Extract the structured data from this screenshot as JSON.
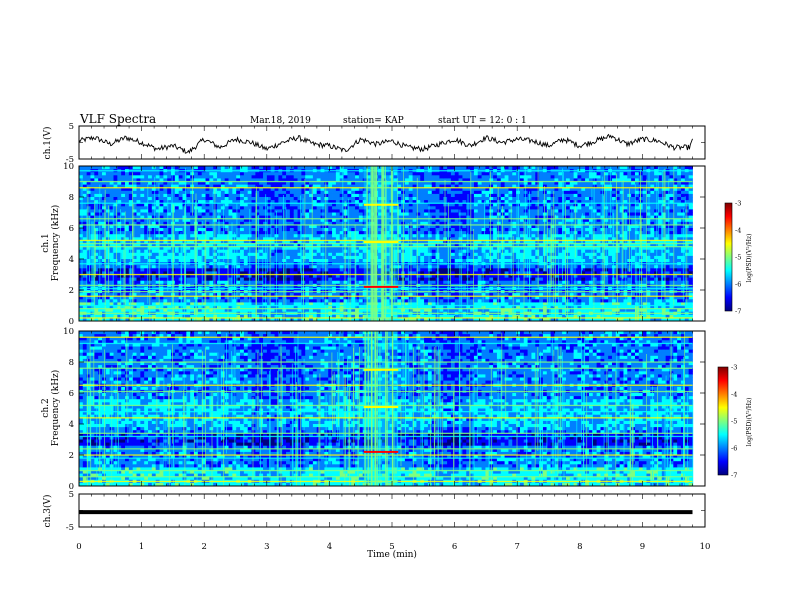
{
  "header": {
    "title": "VLF Spectra",
    "date": "Mar.18, 2019",
    "station": "station= KAP",
    "start": "start  UT =   12: 0  : 1"
  },
  "colors": {
    "colormap": [
      "#00007f",
      "#0000ff",
      "#007fff",
      "#00ffff",
      "#7fff7f",
      "#ffff00",
      "#ff7f00",
      "#ff0000",
      "#7f0000"
    ],
    "trace": "#000000"
  },
  "chart_data": [
    {
      "type": "line",
      "name": "ch1-waveform",
      "ylabel": "ch.1(V)",
      "ylim": [
        -5,
        5
      ],
      "yticks": [
        "5",
        "-5"
      ],
      "xlim": [
        0,
        10
      ],
      "x": [
        0.0,
        0.25,
        0.5,
        0.75,
        1.0,
        1.25,
        1.5,
        1.75,
        2.0,
        2.25,
        2.5,
        2.75,
        3.0,
        3.25,
        3.5,
        3.75,
        4.0,
        4.25,
        4.5,
        4.75,
        5.0,
        5.25,
        5.5,
        5.75,
        6.0,
        6.25,
        6.5,
        6.75,
        7.0,
        7.25,
        7.5,
        7.75,
        8.0,
        8.25,
        8.5,
        8.75,
        9.0,
        9.25,
        9.5,
        9.75,
        9.8
      ],
      "y": [
        0.5,
        1.5,
        -0.5,
        1.5,
        0,
        -2,
        -1,
        -3,
        1,
        -1.5,
        1,
        0,
        -2,
        0,
        1.5,
        -0.5,
        -1,
        -2.5,
        1,
        -0.5,
        0.5,
        -1.5,
        -2,
        -0.5,
        1,
        -1,
        1.5,
        0,
        1,
        0.5,
        -1,
        1,
        -1,
        0.5,
        2,
        -0.5,
        1,
        0.5,
        -1.5,
        -1.5,
        0.5
      ]
    },
    {
      "type": "heatmap",
      "name": "ch1-spectrogram",
      "ylabel": "ch.1\nFrequency (kHz)",
      "ylim": [
        0,
        10
      ],
      "yticks": [
        "0",
        "2",
        "4",
        "6",
        "8",
        "10"
      ],
      "xlim": [
        0,
        10
      ],
      "colorbar": {
        "label": "log(PSD)(V²/Hz)",
        "range": [
          -7,
          -3
        ],
        "ticks": [
          "-3",
          "-4",
          "-5",
          "-6",
          "-7"
        ]
      },
      "burst_minutes": [
        4.55,
        5.1
      ],
      "bands_khz": [
        0.2,
        0.5,
        0.8,
        1.0,
        1.6,
        1.9,
        2.1,
        2.3,
        3.0,
        3.7,
        4.8,
        5.0,
        5.2,
        6.2,
        6.6,
        7.6,
        8.6,
        9.0,
        9.7
      ]
    },
    {
      "type": "heatmap",
      "name": "ch2-spectrogram",
      "ylabel": "ch.2\nFrequency (kHz)",
      "ylim": [
        0,
        10
      ],
      "yticks": [
        "0",
        "2",
        "4",
        "6",
        "8",
        "10"
      ],
      "xlim": [
        0,
        10
      ],
      "colorbar": {
        "label": "log(PSD)(V²/Hz)",
        "range": [
          -7,
          -3
        ],
        "ticks": [
          "-3",
          "-4",
          "-5",
          "-6",
          "-7"
        ]
      },
      "burst_minutes": [
        4.55,
        5.1
      ],
      "bands_khz": [
        0.3,
        0.6,
        1.0,
        1.8,
        2.0,
        2.4,
        3.2,
        3.4,
        4.4,
        4.8,
        5.2,
        6.1,
        6.5,
        7.6,
        8.0,
        9.2,
        9.6
      ]
    },
    {
      "type": "line",
      "name": "ch3-waveform",
      "ylabel": "ch.3(V)",
      "ylim": [
        -5,
        5
      ],
      "yticks": [
        "5",
        "-5"
      ],
      "xlim": [
        0,
        10
      ],
      "xlabel": "Time (min)",
      "xticks": [
        "0",
        "1",
        "2",
        "3",
        "4",
        "5",
        "6",
        "7",
        "8",
        "9",
        "10"
      ],
      "x": [
        0,
        9.8
      ],
      "y": [
        -0.5,
        -0.5
      ]
    }
  ]
}
